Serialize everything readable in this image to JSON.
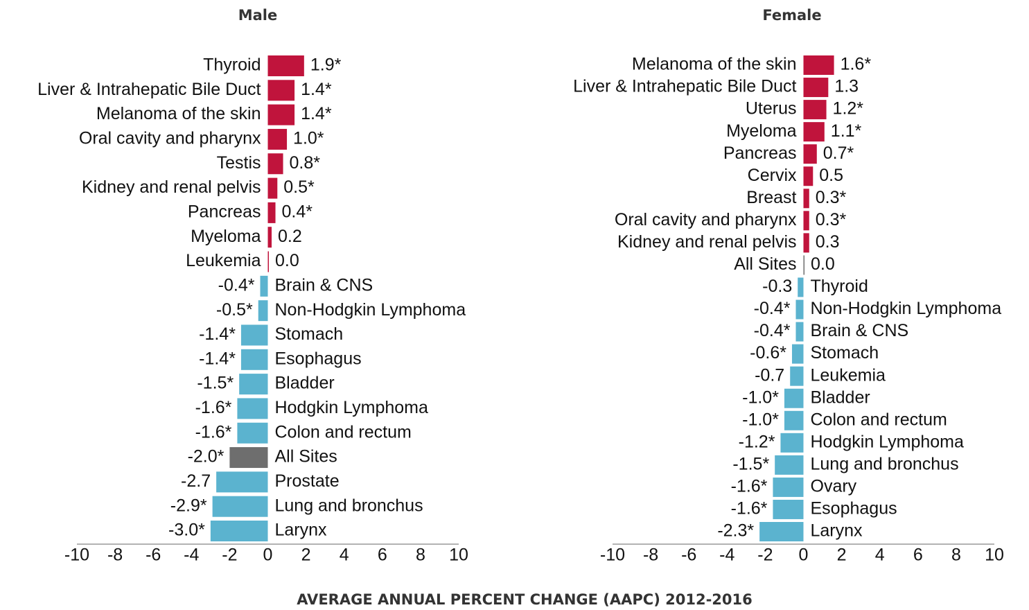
{
  "xlabel": "AVERAGE ANNUAL PERCENT CHANGE (AAPC) 2012-2016",
  "chart_data": [
    {
      "type": "barh",
      "title": "Male",
      "categories": [
        "Thyroid",
        "Liver & Intrahepatic Bile Duct",
        "Melanoma of the skin",
        "Oral cavity and pharynx",
        "Testis",
        "Kidney and renal pelvis",
        "Pancreas",
        "Myeloma",
        "Leukemia",
        "Brain & CNS",
        "Non-Hodgkin Lymphoma",
        "Stomach",
        "Esophagus",
        "Bladder",
        "Hodgkin Lymphoma",
        "Colon and rectum",
        "All Sites",
        "Prostate",
        "Lung and bronchus",
        "Larynx"
      ],
      "values": [
        1.9,
        1.4,
        1.4,
        1.0,
        0.8,
        0.5,
        0.4,
        0.2,
        0.0,
        -0.4,
        -0.5,
        -1.4,
        -1.4,
        -1.5,
        -1.6,
        -1.6,
        -2.0,
        -2.7,
        -2.9,
        -3.0
      ],
      "value_labels": [
        "1.9*",
        "1.4*",
        "1.4*",
        "1.0*",
        "0.8*",
        "0.5*",
        "0.4*",
        "0.2",
        "0.0",
        "-0.4*",
        "-0.5*",
        "-1.4*",
        "-1.4*",
        "-1.5*",
        "-1.6*",
        "-1.6*",
        "-2.0*",
        "-2.7",
        "-2.9*",
        "-3.0*"
      ],
      "colors": [
        "#c0143c",
        "#c0143c",
        "#c0143c",
        "#c0143c",
        "#c0143c",
        "#c0143c",
        "#c0143c",
        "#c0143c",
        "#c0143c",
        "#5bb3cf",
        "#5bb3cf",
        "#5bb3cf",
        "#5bb3cf",
        "#5bb3cf",
        "#5bb3cf",
        "#5bb3cf",
        "#6e6e6e",
        "#5bb3cf",
        "#5bb3cf",
        "#5bb3cf"
      ],
      "xlim": [
        -10,
        10
      ],
      "xticks": [
        -10,
        -8,
        -6,
        -4,
        -2,
        0,
        2,
        4,
        6,
        8,
        10
      ]
    },
    {
      "type": "barh",
      "title": "Female",
      "categories": [
        "Melanoma of the skin",
        "Liver & Intrahepatic Bile Duct",
        "Uterus",
        "Myeloma",
        "Pancreas",
        "Cervix",
        "Breast",
        "Oral cavity and pharynx",
        "Kidney and renal pelvis",
        "All Sites",
        "Thyroid",
        "Non-Hodgkin Lymphoma",
        "Brain & CNS",
        "Stomach",
        "Leukemia",
        "Bladder",
        "Colon and rectum",
        "Hodgkin Lymphoma",
        "Lung and bronchus",
        "Ovary",
        "Esophagus",
        "Larynx"
      ],
      "values": [
        1.6,
        1.3,
        1.2,
        1.1,
        0.7,
        0.5,
        0.3,
        0.3,
        0.3,
        0.0,
        -0.3,
        -0.4,
        -0.4,
        -0.6,
        -0.7,
        -1.0,
        -1.0,
        -1.2,
        -1.5,
        -1.6,
        -1.6,
        -2.3
      ],
      "value_labels": [
        "1.6*",
        "1.3",
        "1.2*",
        "1.1*",
        "0.7*",
        "0.5",
        "0.3*",
        "0.3*",
        "0.3",
        "0.0",
        "-0.3",
        "-0.4*",
        "-0.4*",
        "-0.6*",
        "-0.7",
        "-1.0*",
        "-1.0*",
        "-1.2*",
        "-1.5*",
        "-1.6*",
        "-1.6*",
        "-2.3*"
      ],
      "colors": [
        "#c0143c",
        "#c0143c",
        "#c0143c",
        "#c0143c",
        "#c0143c",
        "#c0143c",
        "#c0143c",
        "#c0143c",
        "#c0143c",
        "#6e6e6e",
        "#5bb3cf",
        "#5bb3cf",
        "#5bb3cf",
        "#5bb3cf",
        "#5bb3cf",
        "#5bb3cf",
        "#5bb3cf",
        "#5bb3cf",
        "#5bb3cf",
        "#5bb3cf",
        "#5bb3cf",
        "#5bb3cf"
      ],
      "xlim": [
        -10,
        10
      ],
      "xticks": [
        -10,
        -8,
        -6,
        -4,
        -2,
        0,
        2,
        4,
        6,
        8,
        10
      ]
    }
  ]
}
